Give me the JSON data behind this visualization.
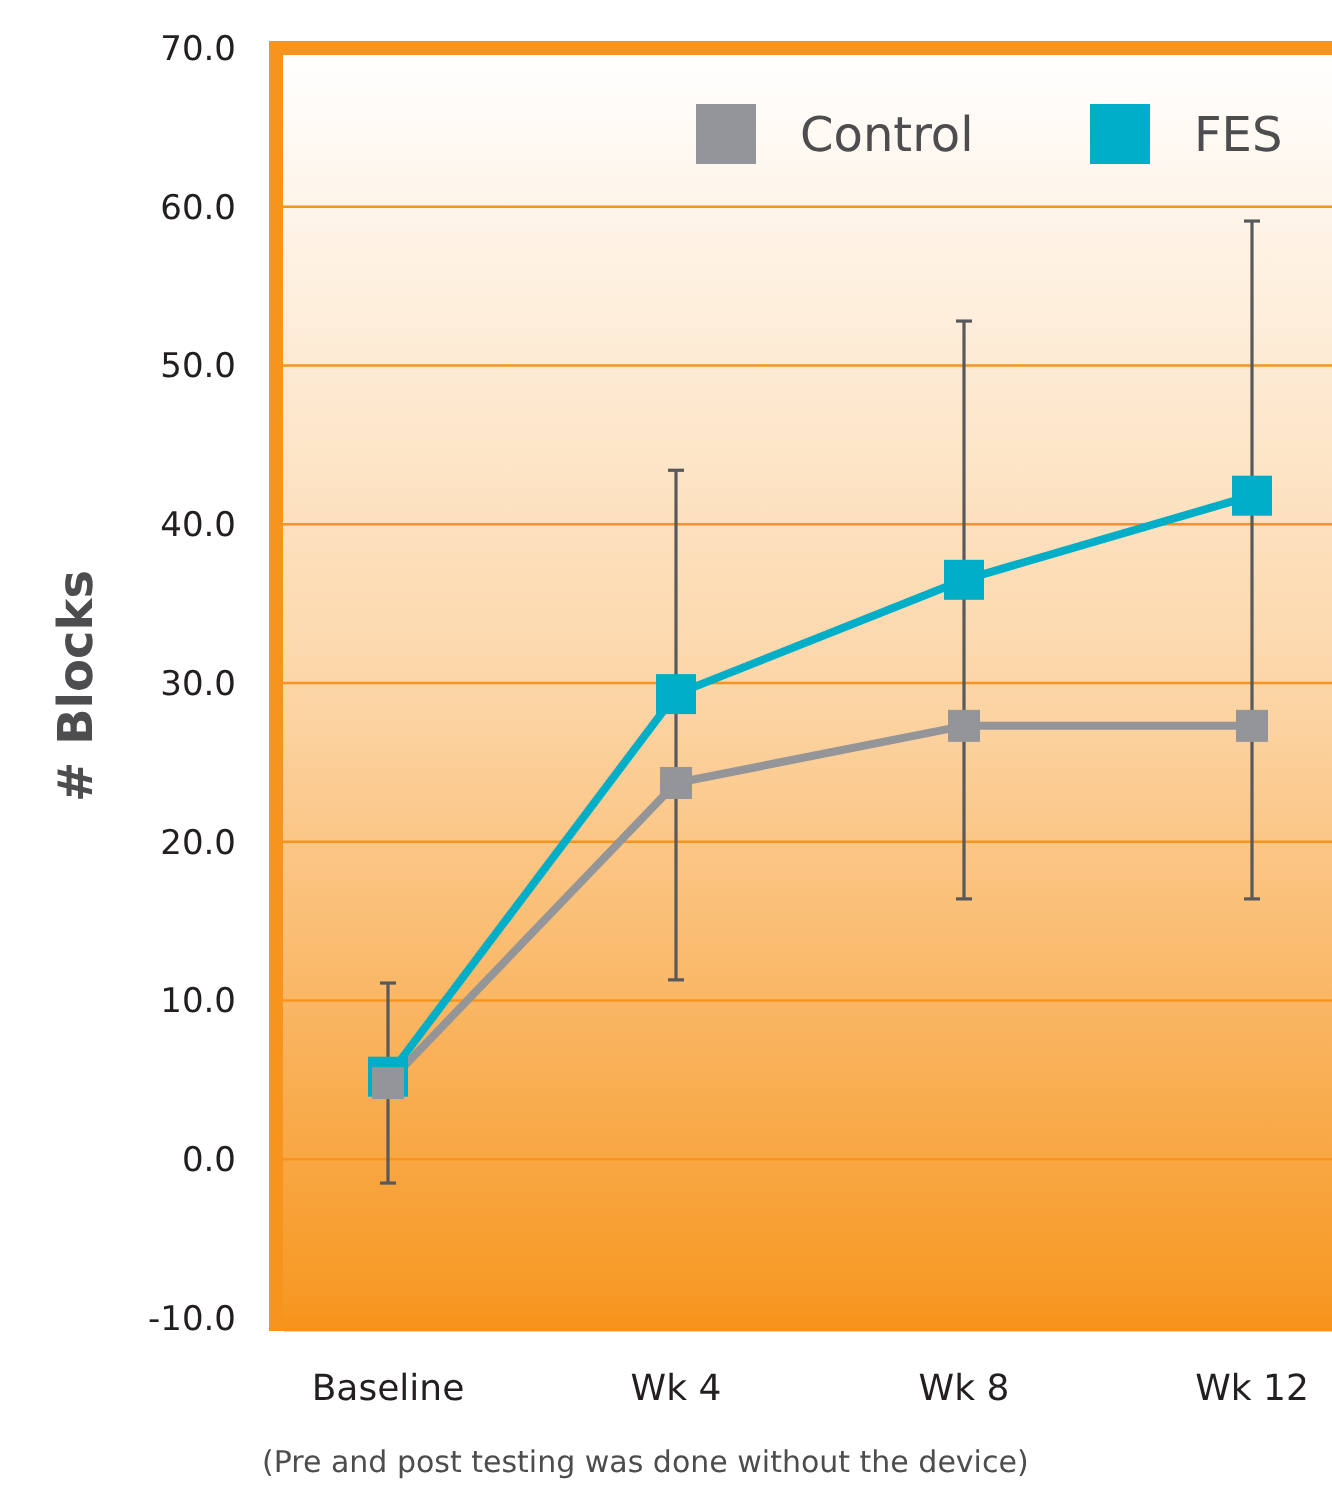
{
  "chart_data": {
    "type": "line",
    "ylabel": "# Blocks",
    "categories": [
      "Baseline",
      "Wk 4",
      "Wk 8",
      "Wk 12"
    ],
    "series": [
      {
        "name": "Control",
        "color": "#939598",
        "values": [
          4.8,
          23.7,
          27.3,
          27.3
        ],
        "errors": [
          [
            -1.5,
            11.1
          ],
          [
            11.3,
            43.4
          ],
          [
            16.4,
            52.8
          ],
          [
            16.4,
            59.1
          ]
        ]
      },
      {
        "name": "FES",
        "color": "#00aec7",
        "values": [
          5.2,
          29.3,
          36.5,
          41.8
        ]
      }
    ],
    "ylim": [
      -10,
      70
    ],
    "yticks": [
      {
        "value": -10,
        "label": "-10.0"
      },
      {
        "value": 0,
        "label": "0.0"
      },
      {
        "value": 10,
        "label": "10.0"
      },
      {
        "value": 20,
        "label": "20.0"
      },
      {
        "value": 30,
        "label": "30.0"
      },
      {
        "value": 40,
        "label": "40.0"
      },
      {
        "value": 50,
        "label": "50.0"
      },
      {
        "value": 60,
        "label": "60.0"
      },
      {
        "value": 70,
        "label": "70.0"
      }
    ],
    "grid": "y",
    "legend": "top right",
    "marker": "square",
    "line_style": "solid",
    "annotations": [
      "(Pre and post testing was done without the device)"
    ]
  }
}
